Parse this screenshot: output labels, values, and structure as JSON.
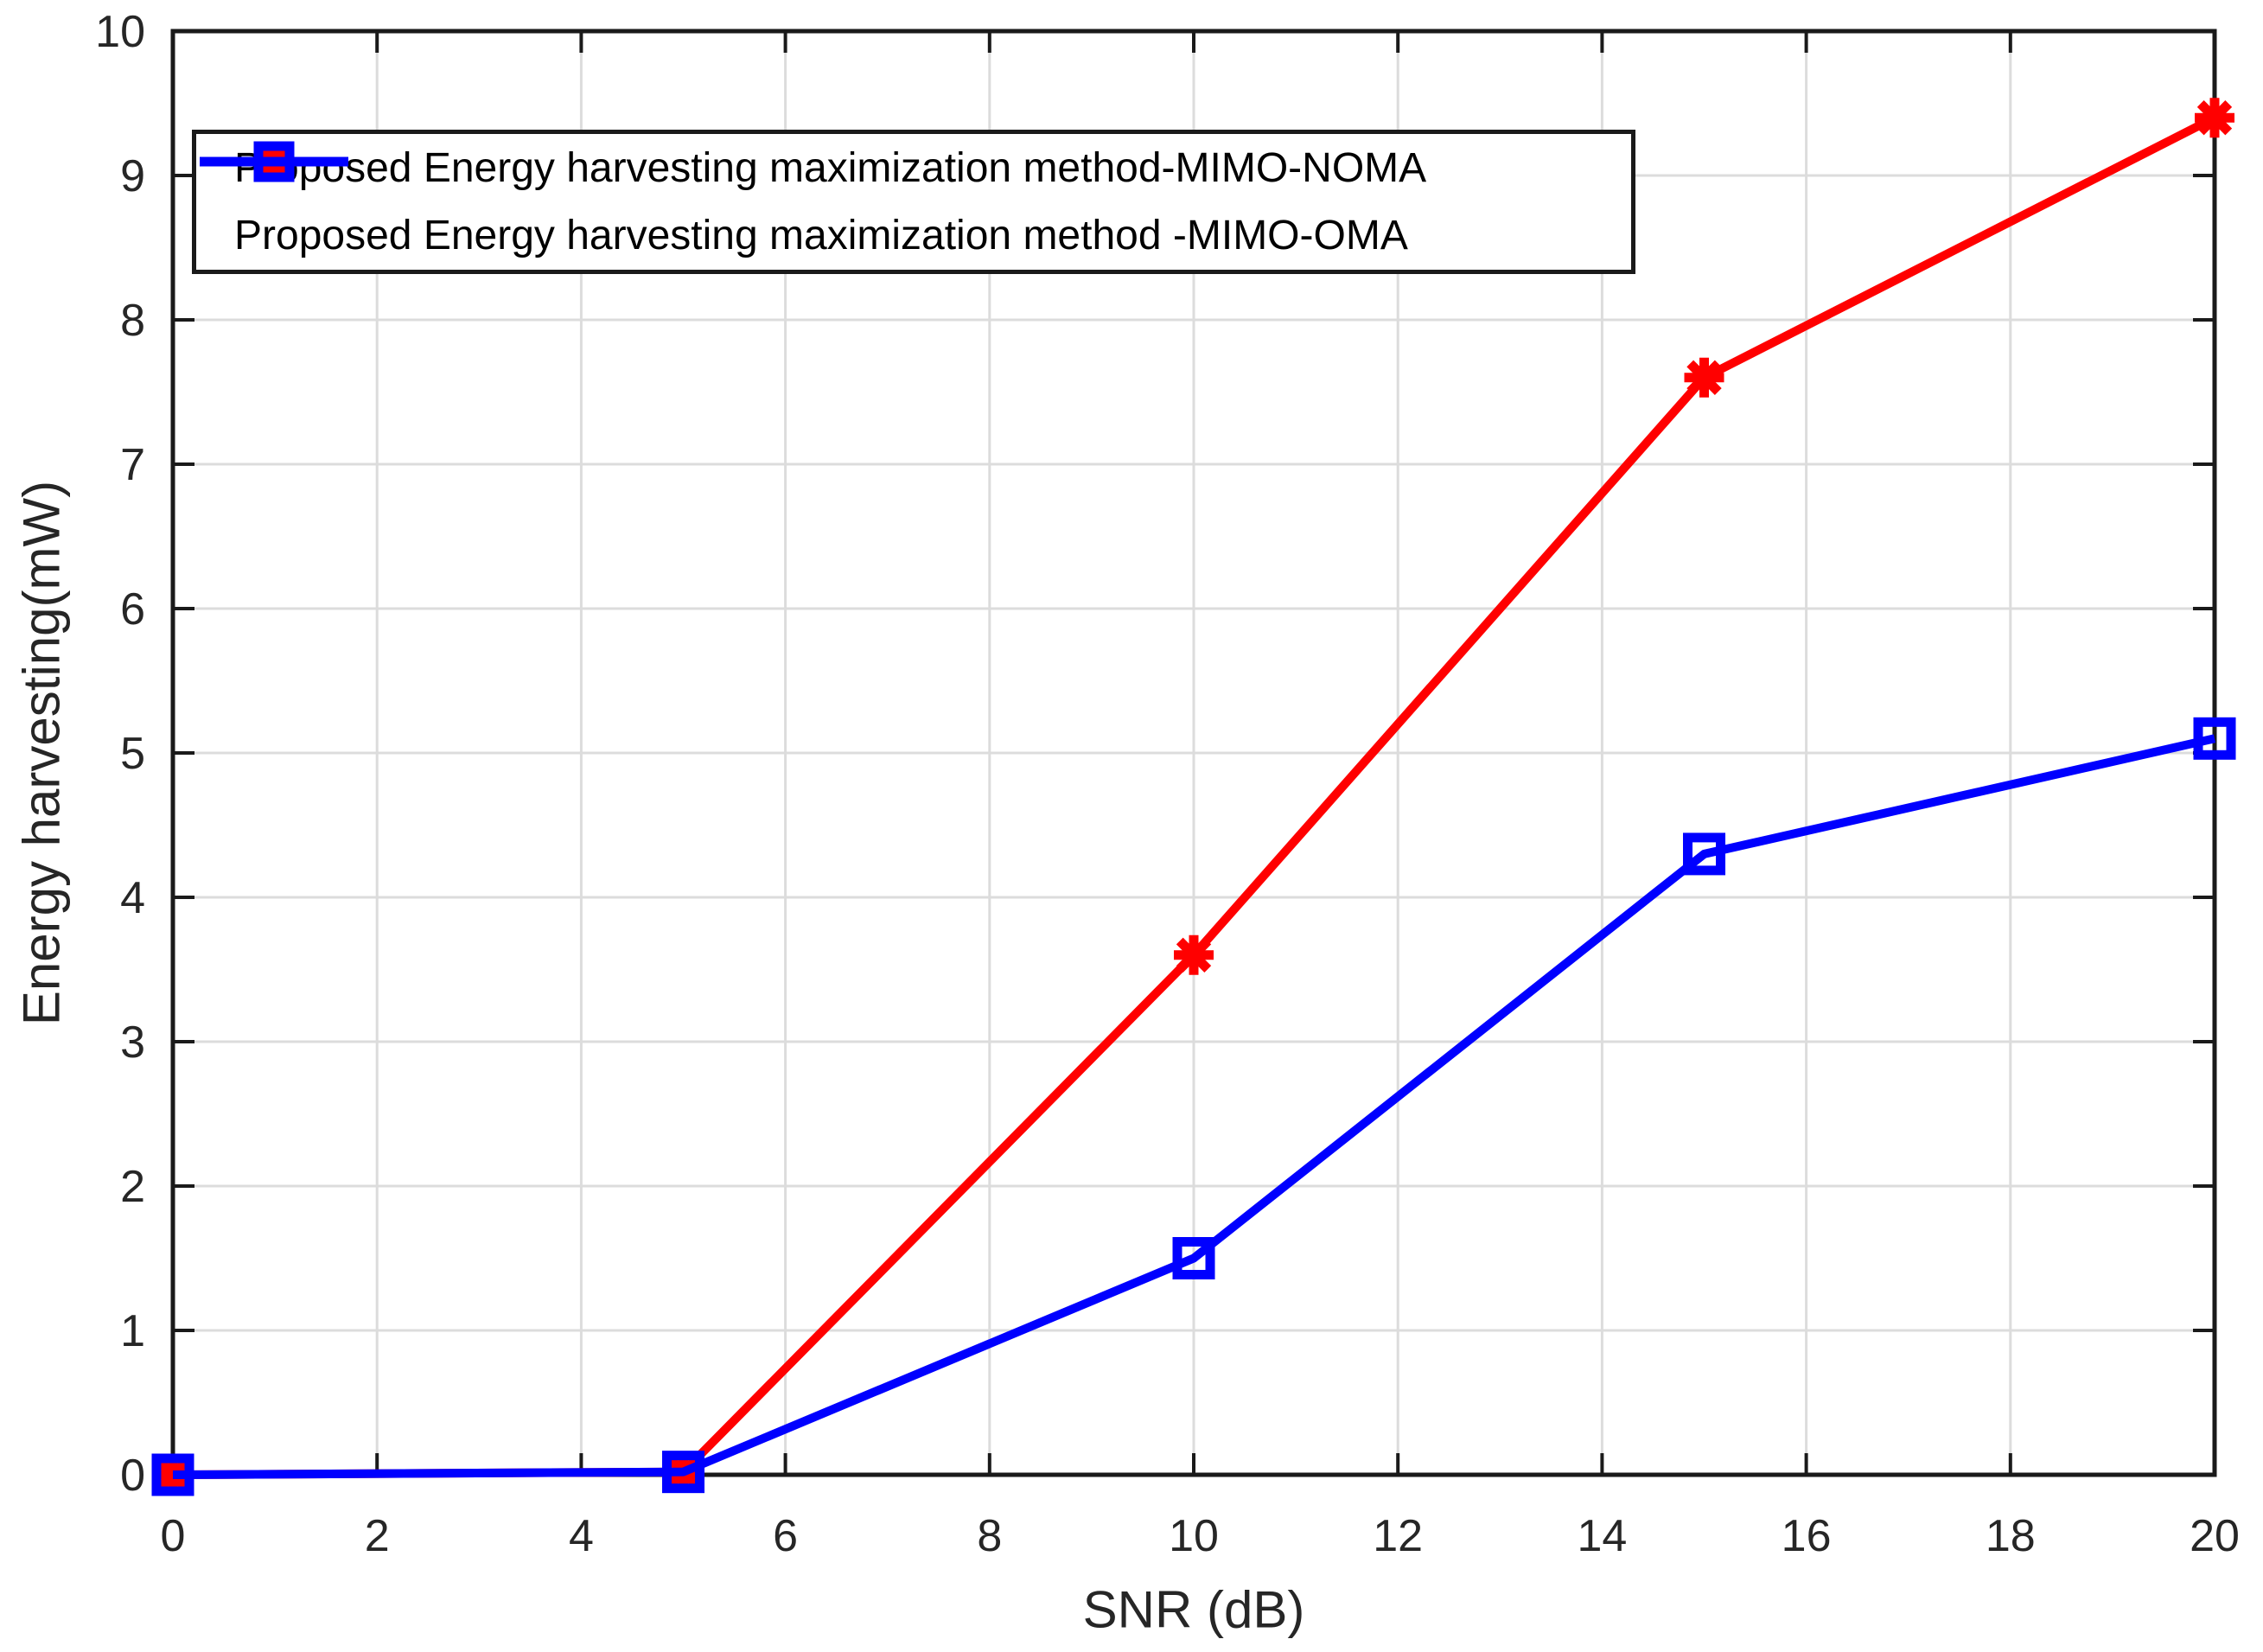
{
  "chart_data": {
    "type": "line",
    "title": "",
    "xlabel": "SNR (dB)",
    "ylabel": "Energy harvesting(mW)",
    "xlim": [
      0,
      20
    ],
    "ylim": [
      0,
      10
    ],
    "xticks": [
      0,
      2,
      4,
      6,
      8,
      10,
      12,
      14,
      16,
      18,
      20
    ],
    "yticks": [
      0,
      1,
      2,
      3,
      4,
      5,
      6,
      7,
      8,
      9,
      10
    ],
    "grid": true,
    "legend_position": "top-left",
    "x": [
      0,
      5,
      10,
      15,
      20
    ],
    "series": [
      {
        "name": "Proposed Energy harvesting maximization method-MIMO-NOMA",
        "color": "#ff0000",
        "marker": "asterisk",
        "values": [
          0,
          0.02,
          3.6,
          7.6,
          9.4
        ]
      },
      {
        "name": "Proposed Energy harvesting maximization method -MIMO-OMA",
        "color": "#0000ff",
        "marker": "square",
        "values": [
          0,
          0.02,
          1.5,
          4.3,
          5.1
        ]
      }
    ],
    "colors": {
      "grid": "#dcdcdc",
      "axis": "#1a1a1a",
      "tick_label": "#262626",
      "background": "#ffffff"
    }
  }
}
